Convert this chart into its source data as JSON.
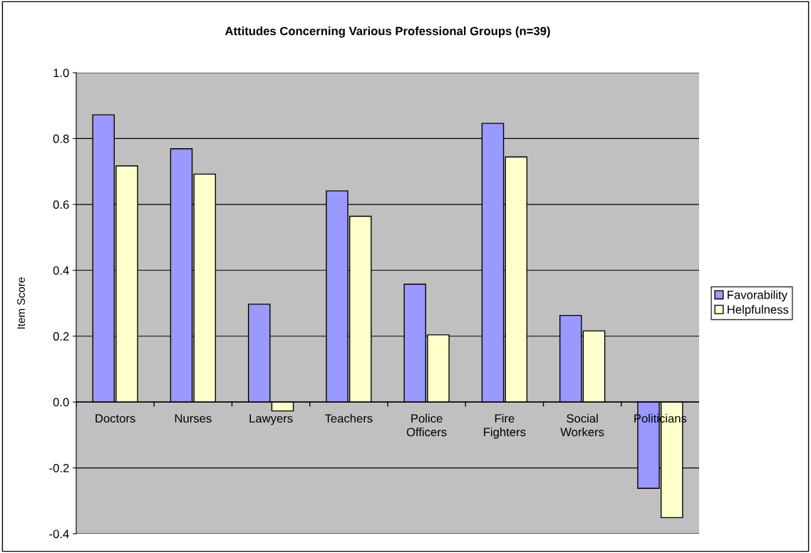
{
  "chart_data": {
    "type": "bar",
    "title": "Attitudes Concerning Various Professional Groups (n=39)",
    "ylabel": "Item Score",
    "categories": [
      "Doctors",
      "Nurses",
      "Lawyers",
      "Teachers",
      "Police\nOfficers",
      "Fire\nFighters",
      "Social\nWorkers",
      "Politicians"
    ],
    "series": [
      {
        "name": "Favorability",
        "color": "#9999ff",
        "values": [
          0.872,
          0.769,
          0.297,
          0.641,
          0.358,
          0.846,
          0.263,
          -0.262
        ]
      },
      {
        "name": "Helpfulness",
        "color": "#ffffcc",
        "values": [
          0.717,
          0.692,
          -0.027,
          0.564,
          0.204,
          0.744,
          0.216,
          -0.351
        ]
      }
    ],
    "ylim": [
      -0.4,
      1.0
    ],
    "yticks": [
      {
        "value": -0.4,
        "label": "-0.4"
      },
      {
        "value": -0.2,
        "label": "-0.2"
      },
      {
        "value": 0.0,
        "label": "0.0"
      },
      {
        "value": 0.2,
        "label": "0.2"
      },
      {
        "value": 0.4,
        "label": "0.4"
      },
      {
        "value": 0.6,
        "label": "0.6"
      },
      {
        "value": 0.8,
        "label": "0.8"
      },
      {
        "value": 1.0,
        "label": "1.0"
      }
    ],
    "grid": "y",
    "legend": "right"
  }
}
